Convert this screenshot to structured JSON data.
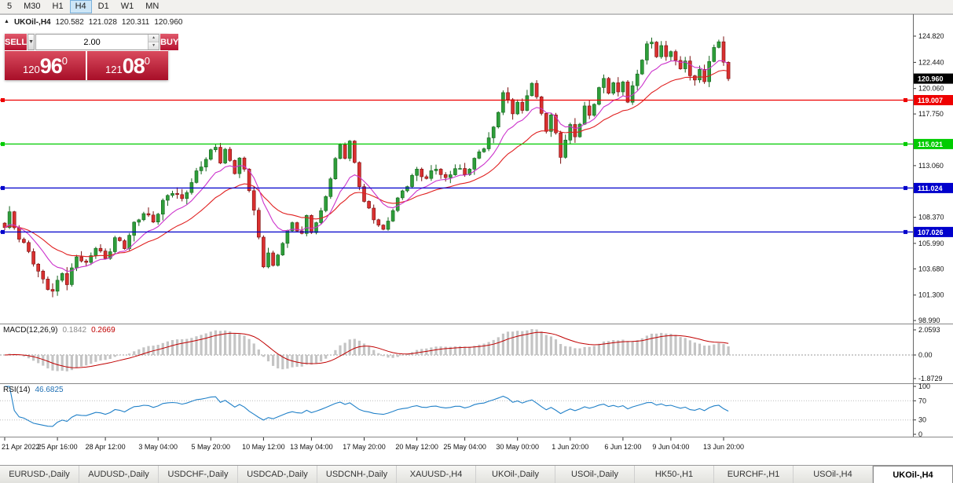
{
  "toolbar": {
    "timeframes": [
      {
        "label": "5",
        "active": false
      },
      {
        "label": "M30",
        "active": false
      },
      {
        "label": "H1",
        "active": false
      },
      {
        "label": "H4",
        "active": true
      },
      {
        "label": "D1",
        "active": false
      },
      {
        "label": "W1",
        "active": false
      },
      {
        "label": "MN",
        "active": false
      }
    ]
  },
  "chart_header": {
    "symbol": "UKOil-,H4",
    "open": "120.582",
    "high": "121.028",
    "low": "120.311",
    "close": "120.960"
  },
  "trade_panel": {
    "sell_label": "SELL",
    "buy_label": "BUY",
    "volume": "2.00",
    "bid": {
      "int": "120",
      "main": "96",
      "sup": "0"
    },
    "ask": {
      "int": "121",
      "main": "08",
      "sup": "0"
    }
  },
  "chart_data": {
    "type": "candlestick",
    "symbol": "UKOil-",
    "timeframe": "H4",
    "candle_count": 152,
    "last_close": 120.96,
    "view_range": {
      "min": 98.78,
      "max": 126.82
    },
    "price_anchors": [
      [
        0,
        107.3
      ],
      [
        1,
        108.6
      ],
      [
        3,
        106.6
      ],
      [
        5,
        105.4
      ],
      [
        7,
        103.2
      ],
      [
        9,
        101.9
      ],
      [
        10,
        101.5
      ],
      [
        12,
        103.6
      ],
      [
        13,
        102.4
      ],
      [
        15,
        104.9
      ],
      [
        17,
        103.9
      ],
      [
        19,
        105.7
      ],
      [
        21,
        104.7
      ],
      [
        23,
        106.5
      ],
      [
        25,
        105.6
      ],
      [
        27,
        107.6
      ],
      [
        29,
        108.9
      ],
      [
        31,
        108.1
      ],
      [
        33,
        109.7
      ],
      [
        35,
        110.6
      ],
      [
        37,
        109.9
      ],
      [
        38,
        110.9
      ],
      [
        40,
        112.5
      ],
      [
        42,
        113.7
      ],
      [
        44,
        114.6
      ],
      [
        45,
        113.4
      ],
      [
        46,
        114.4
      ],
      [
        48,
        112.7
      ],
      [
        49,
        113.8
      ],
      [
        50,
        112.6
      ],
      [
        51,
        110.9
      ],
      [
        52,
        108.9
      ],
      [
        53,
        106.2
      ],
      [
        54,
        103.9
      ],
      [
        55,
        105.3
      ],
      [
        56,
        103.9
      ],
      [
        58,
        106.3
      ],
      [
        60,
        107.7
      ],
      [
        62,
        106.7
      ],
      [
        63,
        108.3
      ],
      [
        64,
        107.2
      ],
      [
        66,
        108.9
      ],
      [
        68,
        112.0
      ],
      [
        70,
        114.8
      ],
      [
        71,
        113.8
      ],
      [
        72,
        115.1
      ],
      [
        73,
        113.3
      ],
      [
        74,
        111.5
      ],
      [
        75,
        109.9
      ],
      [
        77,
        108.3
      ],
      [
        79,
        106.9
      ],
      [
        81,
        109.1
      ],
      [
        83,
        110.9
      ],
      [
        85,
        112.1
      ],
      [
        86,
        112.6
      ],
      [
        88,
        111.7
      ],
      [
        90,
        112.9
      ],
      [
        92,
        111.9
      ],
      [
        94,
        113.0
      ],
      [
        96,
        112.1
      ],
      [
        98,
        113.5
      ],
      [
        100,
        114.9
      ],
      [
        102,
        116.5
      ],
      [
        103,
        118.1
      ],
      [
        104,
        119.7
      ],
      [
        105,
        118.7
      ],
      [
        106,
        117.7
      ],
      [
        107,
        118.9
      ],
      [
        108,
        117.9
      ],
      [
        109,
        119.5
      ],
      [
        110,
        120.9
      ],
      [
        111,
        119.3
      ],
      [
        112,
        117.7
      ],
      [
        113,
        116.3
      ],
      [
        114,
        117.5
      ],
      [
        115,
        115.7
      ],
      [
        116,
        113.9
      ],
      [
        117,
        115.5
      ],
      [
        118,
        116.7
      ],
      [
        119,
        115.9
      ],
      [
        120,
        117.1
      ],
      [
        121,
        118.3
      ],
      [
        122,
        117.5
      ],
      [
        123,
        118.7
      ],
      [
        124,
        119.9
      ],
      [
        125,
        120.8
      ],
      [
        126,
        119.9
      ],
      [
        127,
        120.7
      ],
      [
        128,
        119.7
      ],
      [
        129,
        120.9
      ],
      [
        130,
        118.9
      ],
      [
        131,
        120.0
      ],
      [
        132,
        121.3
      ],
      [
        133,
        122.7
      ],
      [
        134,
        123.9
      ],
      [
        135,
        124.3
      ],
      [
        136,
        123.3
      ],
      [
        137,
        124.0
      ],
      [
        138,
        122.9
      ],
      [
        139,
        123.6
      ],
      [
        140,
        122.5
      ],
      [
        141,
        121.5
      ],
      [
        142,
        122.6
      ],
      [
        143,
        121.3
      ],
      [
        144,
        120.7
      ],
      [
        145,
        122.0
      ],
      [
        146,
        121.0
      ],
      [
        147,
        122.4
      ],
      [
        148,
        123.7
      ],
      [
        149,
        124.4
      ],
      [
        150,
        122.2
      ],
      [
        151,
        120.96
      ]
    ],
    "y_ticks": [
      {
        "label": "124.820",
        "value": 124.82
      },
      {
        "label": "122.440",
        "value": 122.44
      },
      {
        "label": "120.060",
        "value": 120.06
      },
      {
        "label": "117.750",
        "value": 117.75
      },
      {
        "label": "113.060",
        "value": 113.06
      },
      {
        "label": "108.370",
        "value": 108.37
      },
      {
        "label": "105.990",
        "value": 105.99
      },
      {
        "label": "103.680",
        "value": 103.68
      },
      {
        "label": "101.300",
        "value": 101.3
      },
      {
        "label": "98.990",
        "value": 98.99
      }
    ],
    "price_badges": [
      {
        "label": "120.960",
        "value": 120.96,
        "bg": "#000000",
        "fg": "#ffffff",
        "role": "last-price"
      },
      {
        "label": "119.007",
        "value": 119.007,
        "bg": "#ee0000",
        "fg": "#ffffff",
        "role": "hline"
      },
      {
        "label": "115.021",
        "value": 115.021,
        "bg": "#00cc00",
        "fg": "#ffffff",
        "role": "hline"
      },
      {
        "label": "111.024",
        "value": 111.024,
        "bg": "#0000cc",
        "fg": "#ffffff",
        "role": "hline"
      },
      {
        "label": "107.026",
        "value": 107.026,
        "bg": "#0000cc",
        "fg": "#ffffff",
        "role": "hline"
      }
    ],
    "hlines": [
      {
        "value": 119.007,
        "color": "#ee0000"
      },
      {
        "value": 115.021,
        "color": "#00cc00"
      },
      {
        "value": 111.024,
        "color": "#0000cc"
      },
      {
        "value": 107.026,
        "color": "#0000cc"
      }
    ],
    "moving_averages": [
      {
        "name": "ma-slow",
        "period": 24,
        "color": "#e02020"
      },
      {
        "name": "ma-fast",
        "period": 10,
        "color": "#cc33cc"
      }
    ],
    "x_labels": [
      "21 Apr 2022",
      "25 Apr 16:00",
      "28 Apr 12:00",
      "3 May 04:00",
      "5 May 20:00",
      "10 May 12:00",
      "13 May 04:00",
      "17 May 20:00",
      "20 May 12:00",
      "25 May 04:00",
      "30 May 00:00",
      "1 Jun 20:00",
      "6 Jun 12:00",
      "9 Jun 04:00",
      "13 Jun 20:00"
    ],
    "indicators": {
      "macd": {
        "label": "MACD(12,26,9)",
        "value_main": "0.1842",
        "value_signal": "0.2669",
        "axis": {
          "top": "2.0593",
          "zero": "0.00",
          "bottom": "-1.8729"
        }
      },
      "rsi": {
        "label": "RSI(14)",
        "value": "46.6825",
        "axis": [
          "100",
          "70",
          "30",
          "0"
        ],
        "levels": [
          70,
          30
        ]
      }
    },
    "colors": {
      "up": "#2e9e3a",
      "up_stroke": "#14641d",
      "down": "#d93030",
      "down_stroke": "#7a0f0f",
      "macd_hist": "#c4c4c4",
      "macd_signal": "#c00000",
      "rsi_line": "#2080c8"
    }
  },
  "tab_bar": {
    "tabs": [
      {
        "label": "EURUSD-,Daily",
        "active": false
      },
      {
        "label": "AUDUSD-,Daily",
        "active": false
      },
      {
        "label": "USDCHF-,Daily",
        "active": false
      },
      {
        "label": "USDCAD-,Daily",
        "active": false
      },
      {
        "label": "USDCNH-,Daily",
        "active": false
      },
      {
        "label": "XAUUSD-,H4",
        "active": false
      },
      {
        "label": "UKOil-,Daily",
        "active": false
      },
      {
        "label": "USOil-,Daily",
        "active": false
      },
      {
        "label": "HK50-,H1",
        "active": false
      },
      {
        "label": "EURCHF-,H1",
        "active": false
      },
      {
        "label": "USOil-,H4",
        "active": false
      },
      {
        "label": "UKOil-,H4",
        "active": true
      }
    ]
  }
}
